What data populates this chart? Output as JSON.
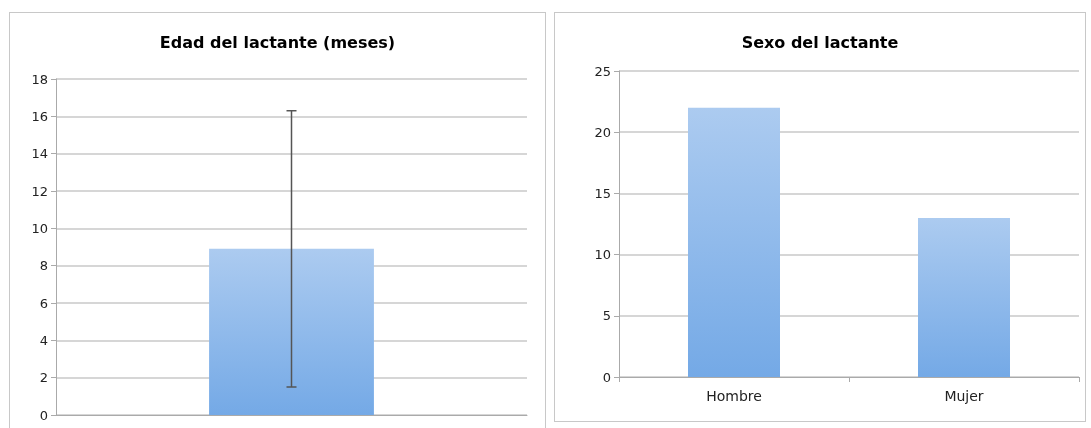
{
  "chart_data": [
    {
      "type": "bar",
      "title": "Edad del lactante (meses)",
      "categories": [
        null
      ],
      "values": [
        8.9
      ],
      "errors": [
        7.4
      ],
      "color": "#74a9e6",
      "ylim": [
        0,
        18
      ],
      "yticks": [
        0,
        2,
        4,
        6,
        8,
        10,
        12,
        14,
        16,
        18
      ],
      "grid": "y"
    },
    {
      "type": "bar",
      "title": "Sexo del lactante",
      "categories": [
        "Hombre",
        "Mujer"
      ],
      "values": [
        22,
        13
      ],
      "color": "#74a9e6",
      "ylim": [
        0,
        25
      ],
      "yticks": [
        0,
        5,
        10,
        15,
        20,
        25
      ],
      "grid": "y"
    }
  ]
}
